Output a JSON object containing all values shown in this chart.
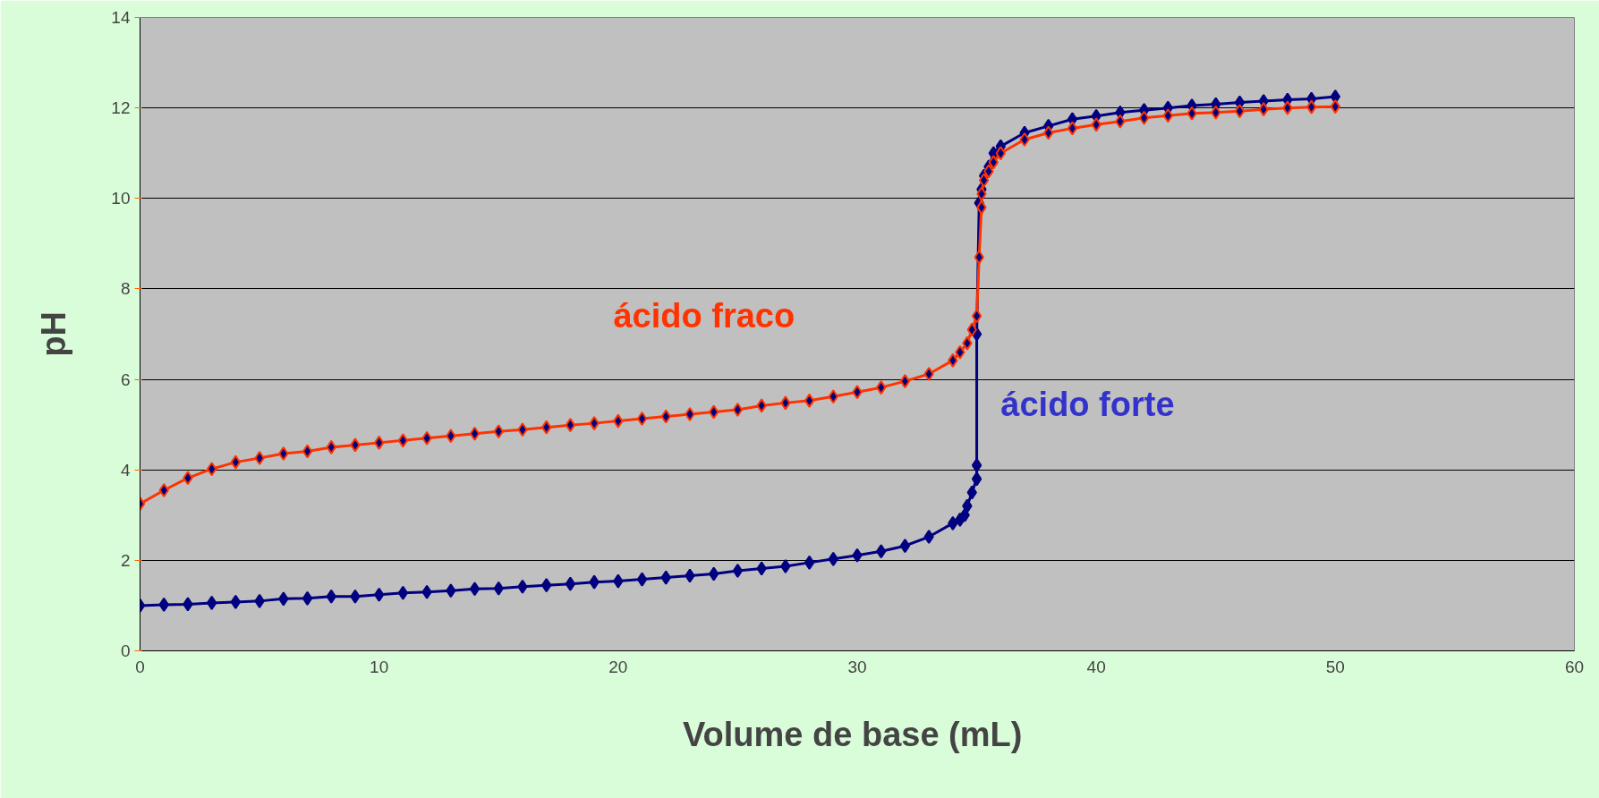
{
  "chart_data": {
    "type": "line",
    "xlabel": "Volume de base  (mL)",
    "ylabel": "pH",
    "xlim": [
      0,
      60
    ],
    "xticks": [
      0,
      10,
      20,
      30,
      40,
      50,
      60
    ],
    "ylim": [
      0,
      14
    ],
    "yticks": [
      0,
      2,
      4,
      6,
      8,
      10,
      12,
      14
    ],
    "grid": "y",
    "marker": "diamond",
    "line_style": "solid",
    "legend": false,
    "series": [
      {
        "name": "ácido fraco",
        "color": "#ff3300",
        "x": [
          0,
          1,
          2,
          3,
          4,
          5,
          6,
          7,
          8,
          9,
          10,
          11,
          12,
          13,
          14,
          15,
          16,
          17,
          18,
          19,
          20,
          21,
          22,
          23,
          24,
          25,
          26,
          27,
          28,
          29,
          30,
          31,
          32,
          33,
          34,
          34.3,
          34.6,
          34.8,
          35,
          35.1,
          35.2,
          35.2,
          35.3,
          35.5,
          35.7,
          36,
          37,
          38,
          39,
          40,
          41,
          42,
          43,
          44,
          45,
          46,
          47,
          48,
          49,
          50
        ],
        "values": [
          3.25,
          3.55,
          3.82,
          4.02,
          4.17,
          4.26,
          4.36,
          4.41,
          4.5,
          4.55,
          4.6,
          4.65,
          4.7,
          4.75,
          4.8,
          4.85,
          4.89,
          4.94,
          4.99,
          5.03,
          5.08,
          5.13,
          5.18,
          5.23,
          5.28,
          5.33,
          5.42,
          5.48,
          5.53,
          5.62,
          5.72,
          5.82,
          5.96,
          6.12,
          6.42,
          6.6,
          6.8,
          7.1,
          7.4,
          8.7,
          9.8,
          10.1,
          10.4,
          10.6,
          10.8,
          11.0,
          11.3,
          11.45,
          11.55,
          11.63,
          11.7,
          11.78,
          11.83,
          11.88,
          11.9,
          11.93,
          11.97,
          12.0,
          12.02,
          12.03
        ]
      },
      {
        "name": "ácido forte",
        "color": "#000080",
        "x": [
          0,
          1,
          2,
          3,
          4,
          5,
          6,
          7,
          8,
          9,
          10,
          11,
          12,
          13,
          14,
          15,
          16,
          17,
          18,
          19,
          20,
          21,
          22,
          23,
          24,
          25,
          26,
          27,
          28,
          29,
          30,
          31,
          32,
          33,
          34,
          34.3,
          34.5,
          34.6,
          34.8,
          35,
          35,
          35,
          35.1,
          35.2,
          35.3,
          35.5,
          35.7,
          36,
          37,
          38,
          39,
          40,
          41,
          42,
          43,
          44,
          45,
          46,
          47,
          48,
          49,
          50
        ],
        "values": [
          1.0,
          1.02,
          1.03,
          1.06,
          1.08,
          1.1,
          1.15,
          1.16,
          1.2,
          1.2,
          1.24,
          1.28,
          1.3,
          1.33,
          1.37,
          1.38,
          1.42,
          1.45,
          1.48,
          1.52,
          1.54,
          1.58,
          1.62,
          1.66,
          1.7,
          1.77,
          1.82,
          1.87,
          1.95,
          2.03,
          2.11,
          2.2,
          2.32,
          2.52,
          2.82,
          2.9,
          3.0,
          3.2,
          3.5,
          3.8,
          4.1,
          7.0,
          9.9,
          10.2,
          10.5,
          10.7,
          11.0,
          11.15,
          11.45,
          11.6,
          11.75,
          11.82,
          11.9,
          11.95,
          12.0,
          12.05,
          12.08,
          12.12,
          12.15,
          12.18,
          12.2,
          12.25
        ]
      }
    ]
  }
}
